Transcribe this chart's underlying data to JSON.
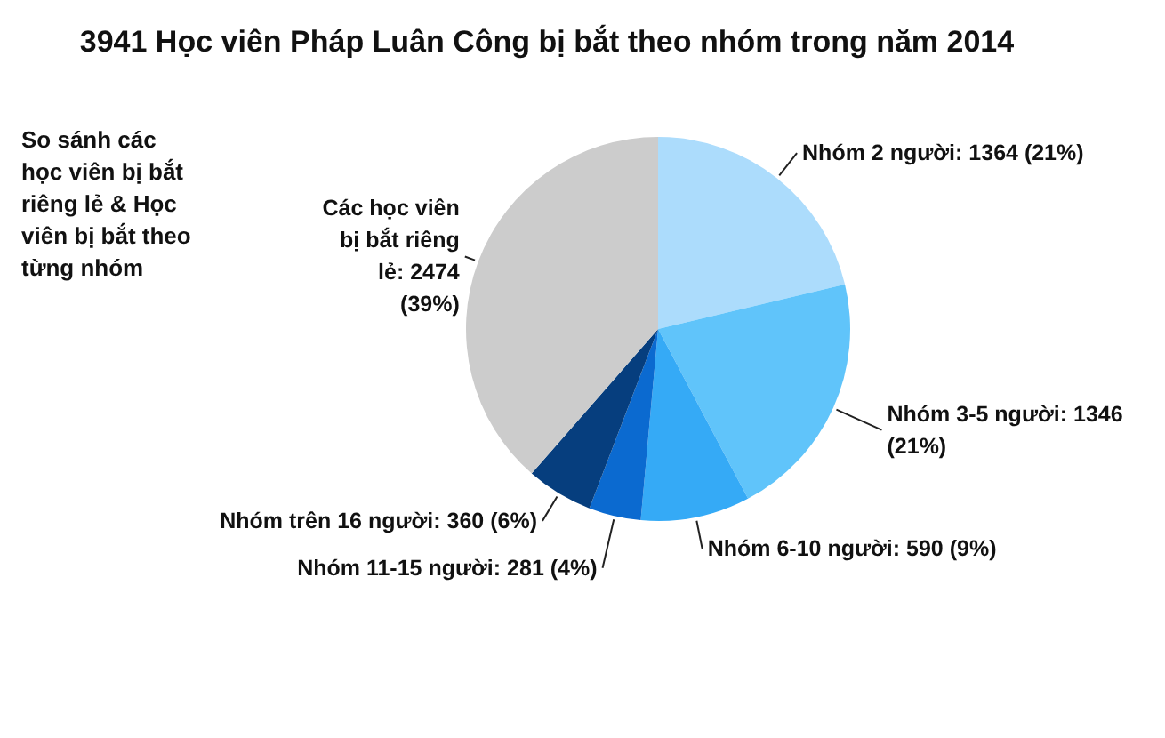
{
  "chart_data": {
    "type": "pie",
    "title": "3941 Học viên Pháp Luân Công bị bắt theo nhóm trong năm 2014",
    "annotations": [
      "So sánh các học viên bị bắt riêng lẻ & Học viên bị bắt theo từng nhóm"
    ],
    "categories": [
      "Nhóm 2 người",
      "Nhóm 3-5 người",
      "Nhóm 6-10 người",
      "Nhóm 11-15 người",
      "Nhóm trên 16 người",
      "Các học viên bị bắt riêng lẻ"
    ],
    "values": [
      1364,
      1346,
      590,
      281,
      360,
      2474
    ],
    "value_labels": [
      "1364 (21%)",
      "1346 (21%)",
      "590 (9%)",
      "281 (4%)",
      "360 (6%)",
      "2474 (39%)"
    ],
    "colors": [
      "#acdcfc",
      "#60c4fa",
      "#35aaf6",
      "#0b6ad0",
      "#063e7e",
      "#cccccc"
    ]
  }
}
